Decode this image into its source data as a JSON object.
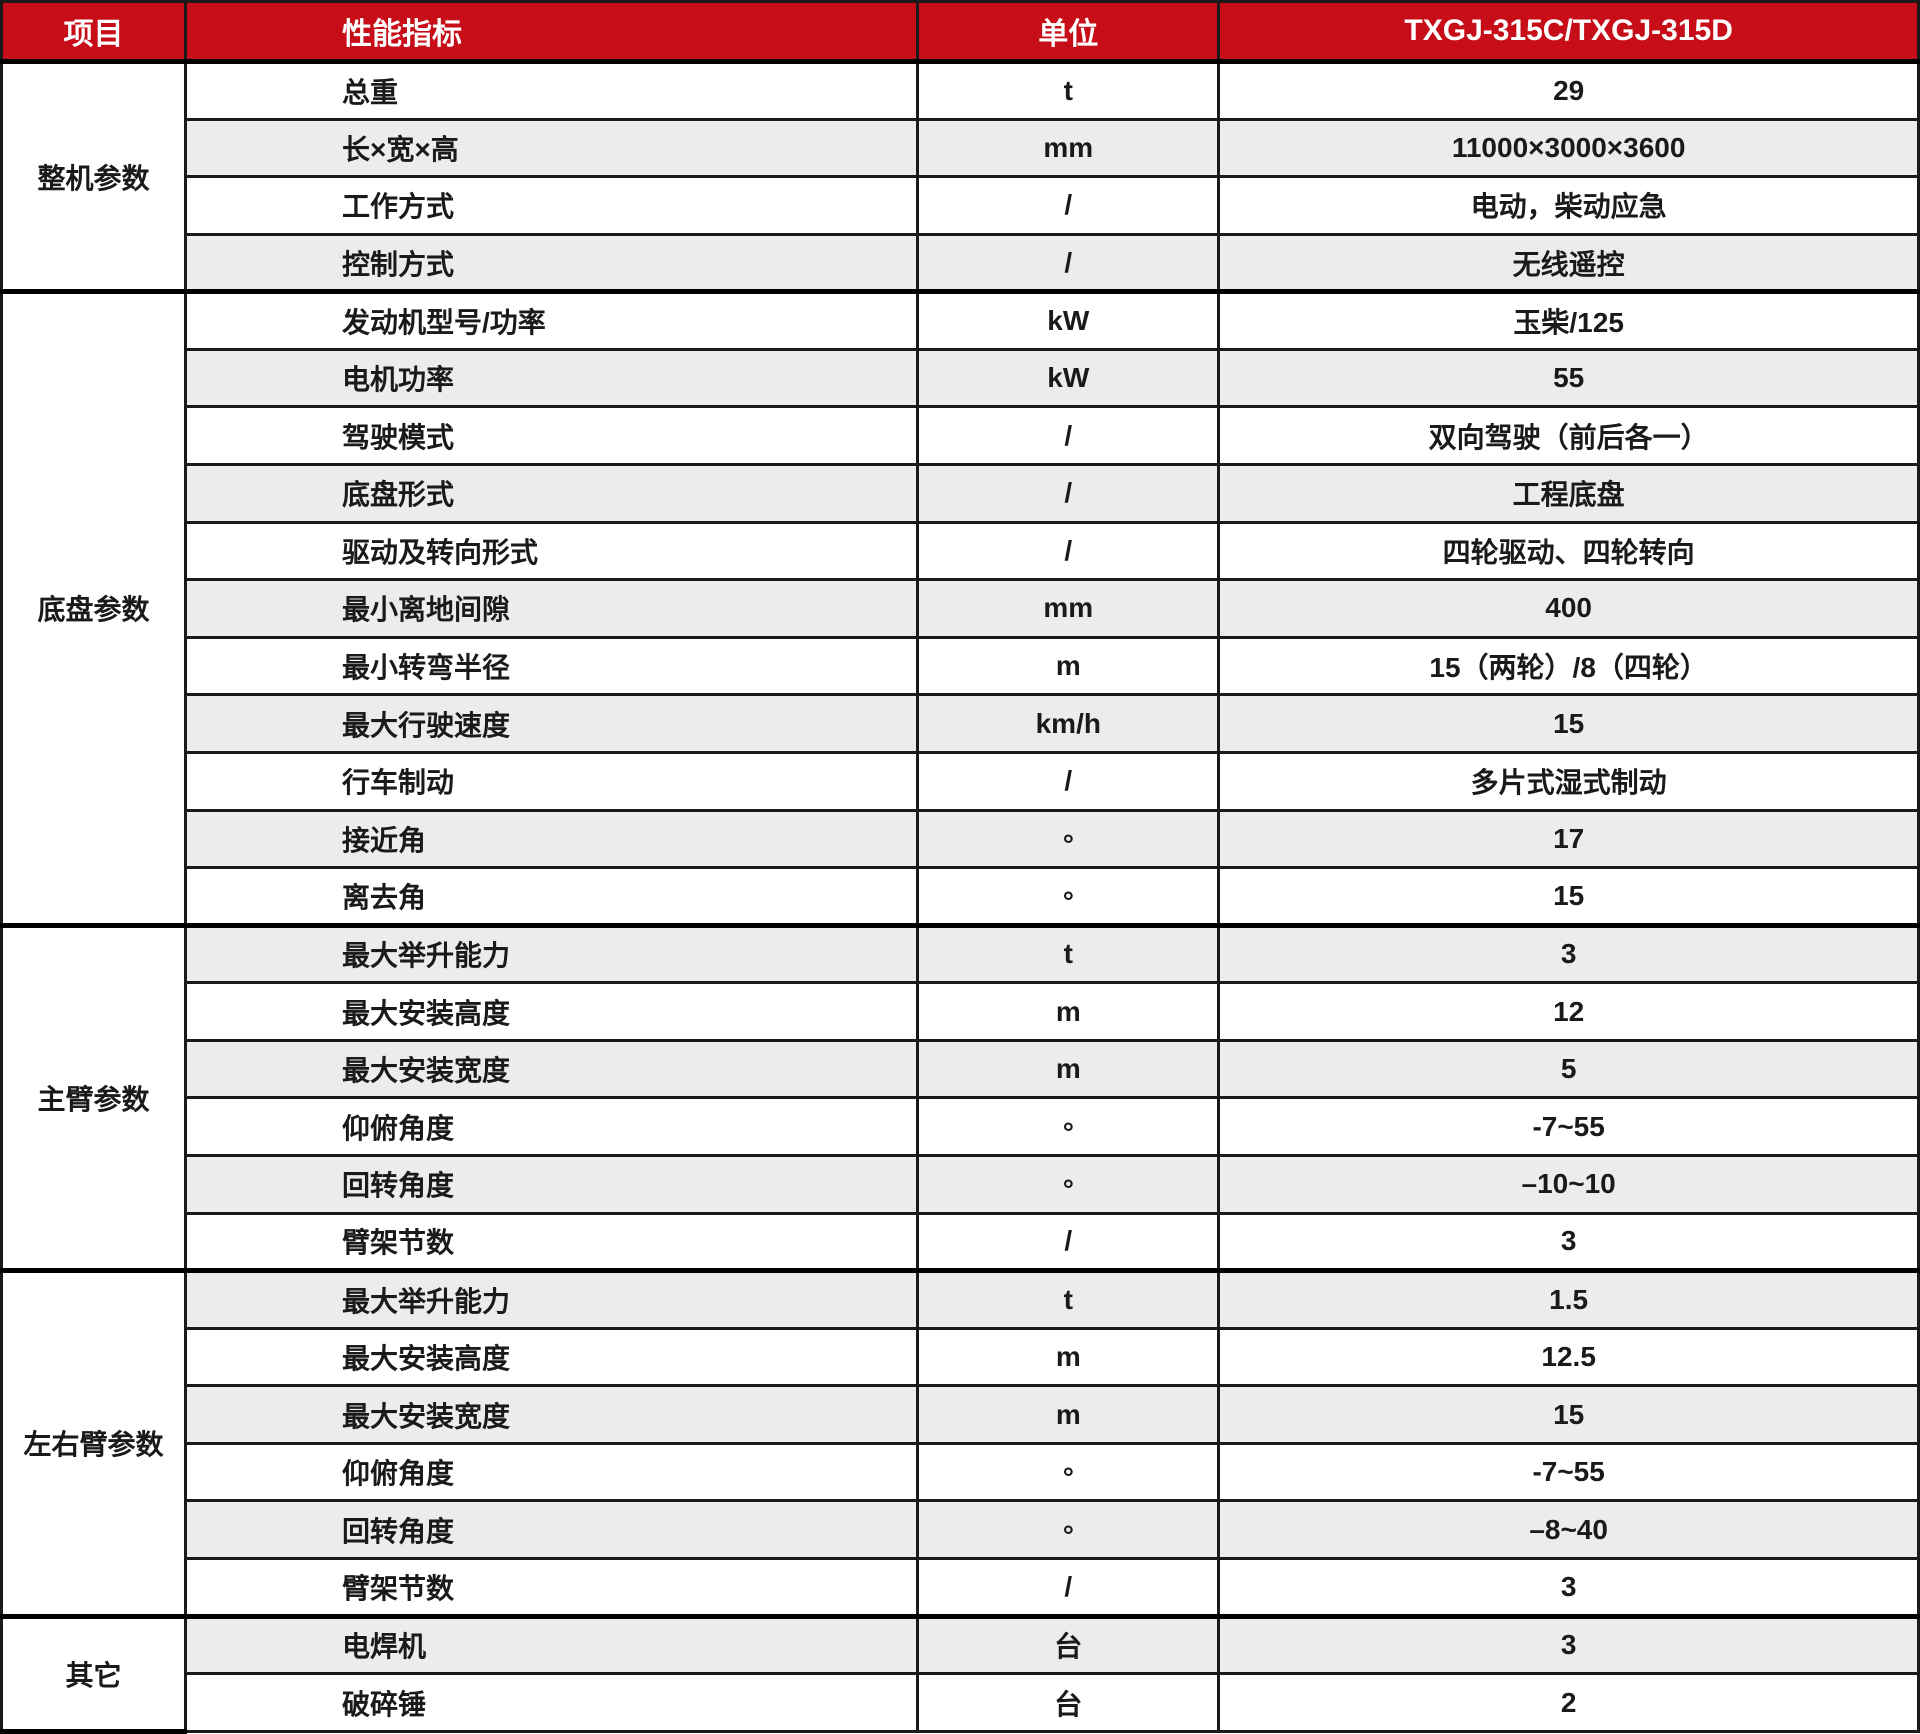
{
  "colors": {
    "header_bg": "#c60d18",
    "header_text": "#ffffff",
    "alt_row": "#ececec",
    "grid": "#1a1a1a",
    "text": "#1a1a1a"
  },
  "table": {
    "columns": [
      "项目",
      "性能指标",
      "单位",
      "TXGJ-315C/TXGJ-315D"
    ],
    "groups": [
      {
        "name": "整机参数",
        "rows": [
          {
            "label": "总重",
            "unit": "t",
            "value": "29"
          },
          {
            "label": "长×宽×高",
            "unit": "mm",
            "value": "11000×3000×3600"
          },
          {
            "label": "工作方式",
            "unit": "/",
            "value": "电动，柴动应急"
          },
          {
            "label": "控制方式",
            "unit": "/",
            "value": "无线遥控"
          }
        ]
      },
      {
        "name": "底盘参数",
        "rows": [
          {
            "label": "发动机型号/功率",
            "unit": "kW",
            "value": "玉柴/125"
          },
          {
            "label": "电机功率",
            "unit": "kW",
            "value": "55"
          },
          {
            "label": "驾驶模式",
            "unit": "/",
            "value": "双向驾驶（前后各一）"
          },
          {
            "label": "底盘形式",
            "unit": "/",
            "value": "工程底盘"
          },
          {
            "label": "驱动及转向形式",
            "unit": "/",
            "value": "四轮驱动、四轮转向"
          },
          {
            "label": "最小离地间隙",
            "unit": "mm",
            "value": "400"
          },
          {
            "label": "最小转弯半径",
            "unit": "m",
            "value": "15（两轮）/8（四轮）"
          },
          {
            "label": "最大行驶速度",
            "unit": "km/h",
            "value": "15"
          },
          {
            "label": "行车制动",
            "unit": "/",
            "value": "多片式湿式制动"
          },
          {
            "label": "接近角",
            "unit": "°",
            "value": "17"
          },
          {
            "label": "离去角",
            "unit": "°",
            "value": "15"
          }
        ]
      },
      {
        "name": "主臂参数",
        "rows": [
          {
            "label": "最大举升能力",
            "unit": "t",
            "value": "3"
          },
          {
            "label": "最大安装高度",
            "unit": "m",
            "value": "12"
          },
          {
            "label": "最大安装宽度",
            "unit": "m",
            "value": "5"
          },
          {
            "label": "仰俯角度",
            "unit": "°",
            "value": "-7~55"
          },
          {
            "label": "回转角度",
            "unit": "°",
            "value": "–10~10"
          },
          {
            "label": "臂架节数",
            "unit": "/",
            "value": "3"
          }
        ]
      },
      {
        "name": "左右臂参数",
        "rows": [
          {
            "label": "最大举升能力",
            "unit": "t",
            "value": "1.5"
          },
          {
            "label": "最大安装高度",
            "unit": "m",
            "value": "12.5"
          },
          {
            "label": "最大安装宽度",
            "unit": "m",
            "value": "15"
          },
          {
            "label": "仰俯角度",
            "unit": "°",
            "value": "-7~55"
          },
          {
            "label": "回转角度",
            "unit": "°",
            "value": "–8~40"
          },
          {
            "label": "臂架节数",
            "unit": "/",
            "value": "3"
          }
        ]
      },
      {
        "name": "其它",
        "rows": [
          {
            "label": "电焊机",
            "unit": "台",
            "value": "3"
          },
          {
            "label": "破碎锤",
            "unit": "台",
            "value": "2"
          }
        ]
      }
    ]
  }
}
